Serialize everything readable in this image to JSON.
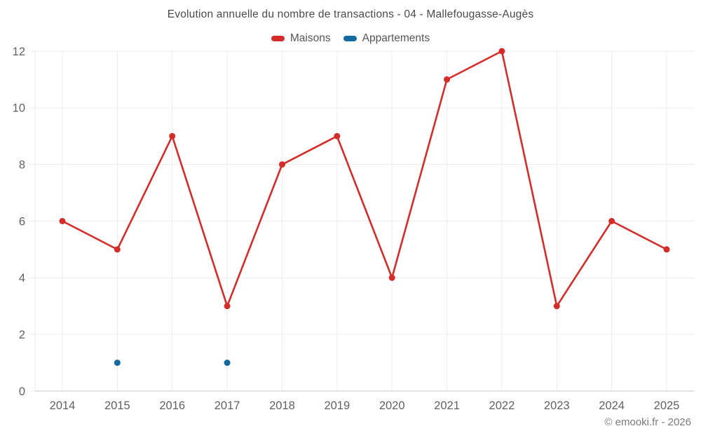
{
  "title": "Evolution annuelle du nombre de transactions - 04 - Mallefougasse-Augès",
  "footer": {
    "copyright": "© emooki.fr - 2026"
  },
  "colors": {
    "maisons": "#d62c29",
    "appartements": "#146a9e",
    "gridline": "#ececec",
    "axis_line": "#c9c9c9",
    "tick_label": "#616161"
  },
  "chart_data": {
    "type": "line",
    "title": "Evolution annuelle du nombre de transactions - 04 - Mallefougasse-Augès",
    "categories": [
      "2014",
      "2015",
      "2016",
      "2017",
      "2018",
      "2019",
      "2020",
      "2021",
      "2022",
      "2023",
      "2024",
      "2025"
    ],
    "series": [
      {
        "name": "Maisons",
        "color": "#d62c29",
        "style": "line-with-points",
        "values": [
          6,
          5,
          9,
          3,
          8,
          9,
          4,
          11,
          12,
          3,
          6,
          5
        ]
      },
      {
        "name": "Appartements",
        "color": "#146a9e",
        "style": "points-only",
        "values": [
          null,
          1,
          null,
          1,
          null,
          null,
          null,
          null,
          null,
          null,
          null,
          null
        ]
      }
    ],
    "xlabel": "",
    "ylabel": "",
    "ylim": [
      0,
      12
    ],
    "yticks": [
      0,
      2,
      4,
      6,
      8,
      10,
      12
    ],
    "grid": true,
    "legend_position": "top"
  }
}
